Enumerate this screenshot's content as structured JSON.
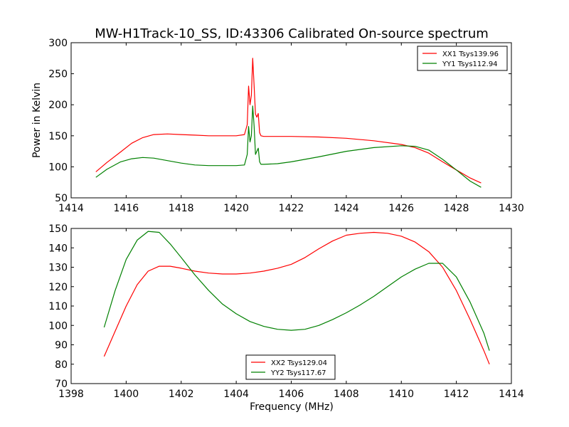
{
  "chart_data": [
    {
      "type": "line",
      "title": "MW-H1Track-10_SS, ID:43306 Calibrated On-source spectrum",
      "xlabel": "",
      "ylabel": "Power in Kelvin",
      "xlim": [
        1414,
        1430
      ],
      "ylim": [
        50,
        300
      ],
      "xticks": [
        "1414",
        "1416",
        "1418",
        "1420",
        "1422",
        "1424",
        "1426",
        "1428",
        "1430"
      ],
      "yticks": [
        "50",
        "100",
        "150",
        "200",
        "250",
        "300"
      ],
      "legend_position": "top-right",
      "grid": false,
      "series": [
        {
          "name": "XX1 Tsys139.96",
          "color": "#ff0000",
          "x": [
            1414.9,
            1415.3,
            1415.8,
            1416.2,
            1416.6,
            1417.0,
            1417.5,
            1418.0,
            1418.5,
            1419.0,
            1419.5,
            1420.0,
            1420.3,
            1420.4,
            1420.45,
            1420.5,
            1420.55,
            1420.6,
            1420.65,
            1420.7,
            1420.75,
            1420.8,
            1420.85,
            1420.9,
            1421.0,
            1421.5,
            1422.0,
            1423.0,
            1424.0,
            1425.0,
            1426.0,
            1426.5,
            1427.0,
            1427.5,
            1428.0,
            1428.5,
            1428.9
          ],
          "y": [
            92,
            107,
            124,
            138,
            147,
            152,
            153,
            152,
            151,
            150,
            150,
            150,
            152,
            168,
            230,
            200,
            215,
            275,
            230,
            185,
            180,
            186,
            155,
            150,
            149,
            149,
            149,
            148,
            146,
            142,
            136,
            131,
            122,
            108,
            95,
            82,
            74
          ]
        },
        {
          "name": "YY1 Tsys112.94",
          "color": "#008000",
          "x": [
            1414.9,
            1415.3,
            1415.8,
            1416.2,
            1416.6,
            1417.0,
            1417.5,
            1418.0,
            1418.5,
            1419.0,
            1419.5,
            1420.0,
            1420.3,
            1420.4,
            1420.45,
            1420.5,
            1420.55,
            1420.6,
            1420.65,
            1420.7,
            1420.75,
            1420.8,
            1420.85,
            1420.9,
            1421.0,
            1421.5,
            1422.0,
            1423.0,
            1424.0,
            1425.0,
            1426.0,
            1426.5,
            1427.0,
            1427.5,
            1428.0,
            1428.5,
            1428.9
          ],
          "y": [
            83,
            96,
            108,
            113,
            115,
            114,
            110,
            106,
            103,
            102,
            102,
            102,
            103,
            120,
            165,
            140,
            150,
            198,
            165,
            120,
            125,
            130,
            108,
            104,
            104,
            105,
            108,
            116,
            125,
            131,
            134,
            133,
            127,
            112,
            95,
            77,
            67
          ]
        }
      ]
    },
    {
      "type": "line",
      "title": "",
      "xlabel": "Frequency (MHz)",
      "ylabel": "",
      "xlim": [
        1398,
        1414
      ],
      "ylim": [
        70,
        150
      ],
      "xticks": [
        "1398",
        "1400",
        "1402",
        "1404",
        "1406",
        "1408",
        "1410",
        "1412",
        "1414"
      ],
      "yticks": [
        "70",
        "80",
        "90",
        "100",
        "110",
        "120",
        "130",
        "140",
        "150"
      ],
      "legend_position": "bottom-center",
      "grid": false,
      "series": [
        {
          "name": "XX2 Tsys129.04",
          "color": "#ff0000",
          "x": [
            1399.2,
            1399.6,
            1400.0,
            1400.4,
            1400.8,
            1401.2,
            1401.6,
            1402.0,
            1402.5,
            1403.0,
            1403.5,
            1404.0,
            1404.5,
            1405.0,
            1405.5,
            1406.0,
            1406.5,
            1407.0,
            1407.5,
            1408.0,
            1408.5,
            1409.0,
            1409.5,
            1410.0,
            1410.5,
            1411.0,
            1411.5,
            1412.0,
            1412.5,
            1413.0,
            1413.2
          ],
          "y": [
            84,
            97,
            110,
            121,
            128,
            130.5,
            130.5,
            129.5,
            128,
            127,
            126.5,
            126.5,
            127,
            128,
            129.5,
            131.5,
            135,
            139.5,
            143.5,
            146.5,
            147.5,
            148,
            147.5,
            146,
            143,
            138,
            130,
            118,
            103,
            87,
            80
          ]
        },
        {
          "name": "YY2 Tsys117.67",
          "color": "#008000",
          "x": [
            1399.2,
            1399.6,
            1400.0,
            1400.4,
            1400.8,
            1401.2,
            1401.6,
            1402.0,
            1402.5,
            1403.0,
            1403.5,
            1404.0,
            1404.5,
            1405.0,
            1405.5,
            1406.0,
            1406.5,
            1407.0,
            1407.5,
            1408.0,
            1408.5,
            1409.0,
            1409.5,
            1410.0,
            1410.5,
            1411.0,
            1411.5,
            1412.0,
            1412.5,
            1413.0,
            1413.2
          ],
          "y": [
            99,
            118,
            134,
            144,
            148.5,
            148,
            142,
            135,
            126,
            118,
            111,
            106,
            102,
            99.5,
            98,
            97.5,
            98,
            100,
            103,
            106.5,
            110.5,
            115,
            120,
            125,
            129,
            132,
            132,
            125,
            112,
            96,
            87
          ]
        }
      ]
    }
  ]
}
